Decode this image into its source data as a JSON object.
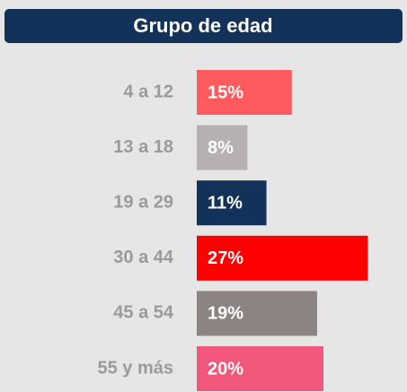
{
  "chart_data": {
    "type": "bar",
    "orientation": "horizontal",
    "title": "Grupo de edad",
    "categories": [
      "4 a 12",
      "13 a 18",
      "19 a 29",
      "30 a 44",
      "45 a 54",
      "55 y más"
    ],
    "values": [
      15,
      8,
      11,
      27,
      19,
      20
    ],
    "value_labels": [
      "15%",
      "8%",
      "11%",
      "27%",
      "19%",
      "20%"
    ],
    "colors": [
      "#fd5b5e",
      "#b6b0b0",
      "#12325a",
      "#ff0000",
      "#8c8383",
      "#f2587b"
    ]
  }
}
